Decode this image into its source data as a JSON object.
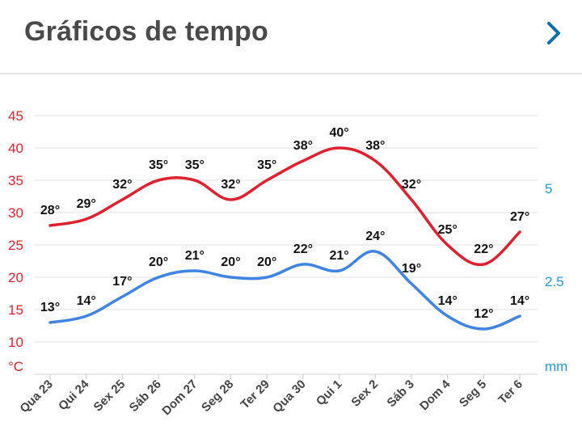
{
  "header": {
    "title": "Gráficos de tempo",
    "next_icon": "chevron-right-icon"
  },
  "chart_data": {
    "type": "line",
    "categories": [
      "Qua 23",
      "Qui 24",
      "Sex 25",
      "Sáb 26",
      "Dom 27",
      "Seg 28",
      "Ter 29",
      "Qua 30",
      "Qui 1",
      "Sex 2",
      "Sáb 3",
      "Dom 4",
      "Seg 5",
      "Ter 6"
    ],
    "series": [
      {
        "color": "#e0202e",
        "axis": "left",
        "values": [
          28,
          29,
          32,
          35,
          35,
          32,
          35,
          38,
          40,
          38,
          32,
          25,
          22,
          27
        ],
        "labels": [
          "28°",
          "29°",
          "32°",
          "35°",
          "35°",
          "32°",
          "35°",
          "38°",
          "40°",
          "38°",
          "32°",
          "25°",
          "22°",
          "27°"
        ]
      },
      {
        "color": "#3f84e5",
        "axis": "left",
        "values": [
          13,
          14,
          17,
          20,
          21,
          20,
          20,
          22,
          21,
          24,
          19,
          14,
          12,
          14
        ],
        "labels": [
          "13°",
          "14°",
          "17°",
          "20°",
          "21°",
          "20°",
          "20°",
          "22°",
          "21°",
          "24°",
          "19°",
          "14°",
          "12°",
          "14°"
        ]
      }
    ],
    "y_left": {
      "unit": "°C",
      "ticks": [
        10,
        15,
        20,
        25,
        30,
        35,
        40,
        45
      ],
      "color": "#e0202e",
      "ylim": [
        7,
        48
      ]
    },
    "y_right": {
      "unit": "mm",
      "ticks": [
        "2.5",
        "5"
      ],
      "tick_values": [
        2.5,
        5
      ],
      "color": "#1a9be0"
    },
    "grid": true
  }
}
